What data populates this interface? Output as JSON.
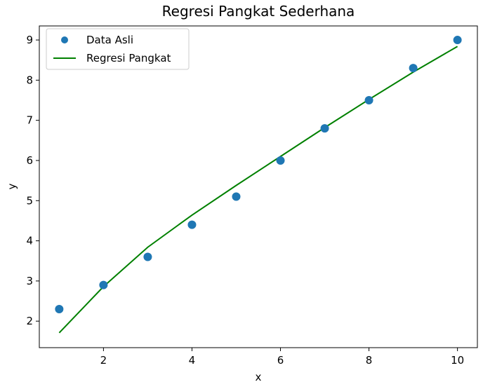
{
  "chart_data": {
    "type": "scatter",
    "title": "Regresi Pangkat Sederhana",
    "xlabel": "x",
    "ylabel": "y",
    "xlim": [
      0.55,
      10.45
    ],
    "ylim": [
      1.34,
      9.35
    ],
    "xticks": [
      2,
      4,
      6,
      8,
      10
    ],
    "yticks": [
      2,
      3,
      4,
      5,
      6,
      7,
      8,
      9
    ],
    "grid": false,
    "legend_position": "top-left",
    "series": [
      {
        "name": "Data Asli",
        "kind": "scatter",
        "color": "#1f77b4",
        "x": [
          1,
          2,
          3,
          4,
          5,
          6,
          7,
          8,
          9,
          10
        ],
        "y": [
          2.3,
          2.9,
          3.6,
          4.4,
          5.1,
          6.0,
          6.8,
          7.5,
          8.3,
          9.0
        ]
      },
      {
        "name": "Regresi Pangkat",
        "kind": "line",
        "color": "#008000",
        "x": [
          1,
          2,
          3,
          4,
          5,
          6,
          7,
          8,
          9,
          10
        ],
        "y": [
          1.71,
          2.86,
          3.84,
          4.64,
          5.38,
          6.1,
          6.82,
          7.52,
          8.2,
          8.84
        ]
      }
    ]
  }
}
